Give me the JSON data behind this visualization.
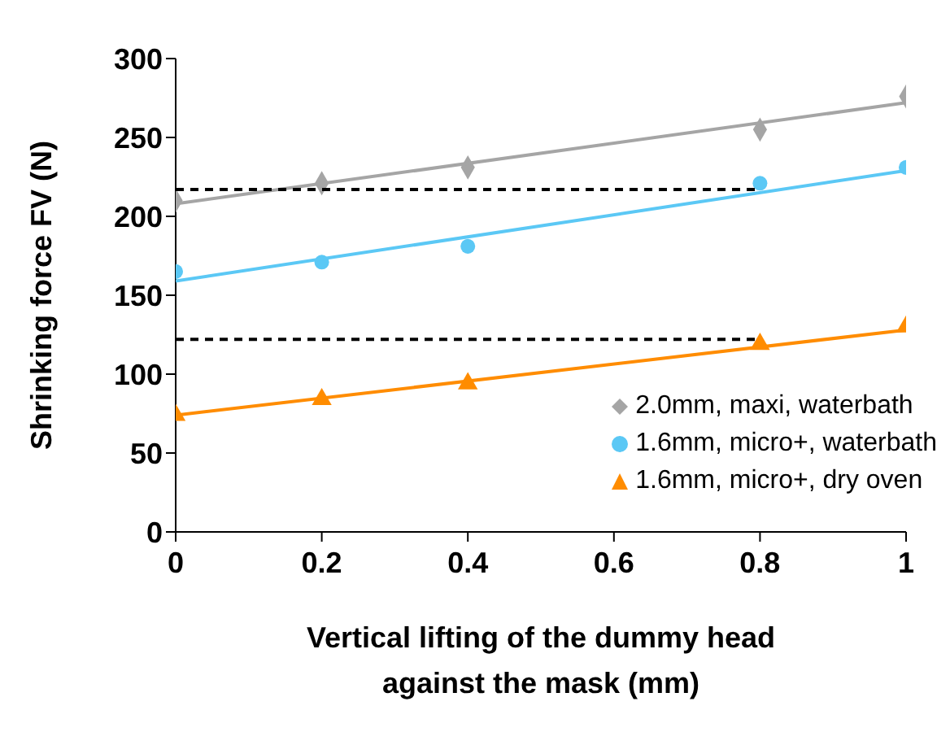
{
  "chart_data": {
    "type": "scatter",
    "xlabel": "Vertical lifting of the dummy head against the mask (mm)",
    "ylabel": "Shrinking force FV (N)",
    "x": [
      0,
      0.2,
      0.4,
      0.8,
      1
    ],
    "series": [
      {
        "name": "2.0mm, maxi, waterbath",
        "color": "#a5a5a5",
        "marker": "diamond",
        "values": [
          210,
          221,
          231,
          255,
          276
        ]
      },
      {
        "name": "1.6mm, micro+, waterbath",
        "color": "#5bc8f5",
        "marker": "circle",
        "values": [
          165,
          171,
          181,
          221,
          231
        ]
      },
      {
        "name": "1.6mm, micro+, dry oven",
        "color": "#ff8c00",
        "marker": "triangle",
        "values": [
          74,
          84,
          94,
          119,
          130
        ]
      },
      {
        "type": "line",
        "color": "#a5a5a5",
        "marker": "none",
        "line_style": "solid",
        "x": [
          0,
          1
        ],
        "values": [
          208,
          272
        ]
      },
      {
        "type": "line",
        "color": "#5bc8f5",
        "marker": "none",
        "line_style": "solid",
        "x": [
          0,
          1
        ],
        "values": [
          159,
          229
        ]
      },
      {
        "type": "line",
        "color": "#ff8c00",
        "marker": "none",
        "line_style": "solid",
        "x": [
          0,
          1
        ],
        "values": [
          74,
          128
        ]
      },
      {
        "type": "line",
        "color": "#000000",
        "marker": "none",
        "line_style": "dashed",
        "x": [
          0,
          0.8
        ],
        "values": [
          217,
          217
        ]
      },
      {
        "type": "line",
        "color": "#000000",
        "marker": "none",
        "line_style": "dashed",
        "x": [
          0,
          0.8
        ],
        "values": [
          122,
          122
        ]
      }
    ],
    "xlim": [
      0,
      1
    ],
    "xticks": [
      0,
      0.2,
      0.4,
      0.6,
      0.8,
      1
    ],
    "ylim": [
      0,
      300
    ],
    "yticks": [
      0,
      50,
      100,
      150,
      200,
      250,
      300
    ],
    "grid": false,
    "legend": "bottom right"
  }
}
